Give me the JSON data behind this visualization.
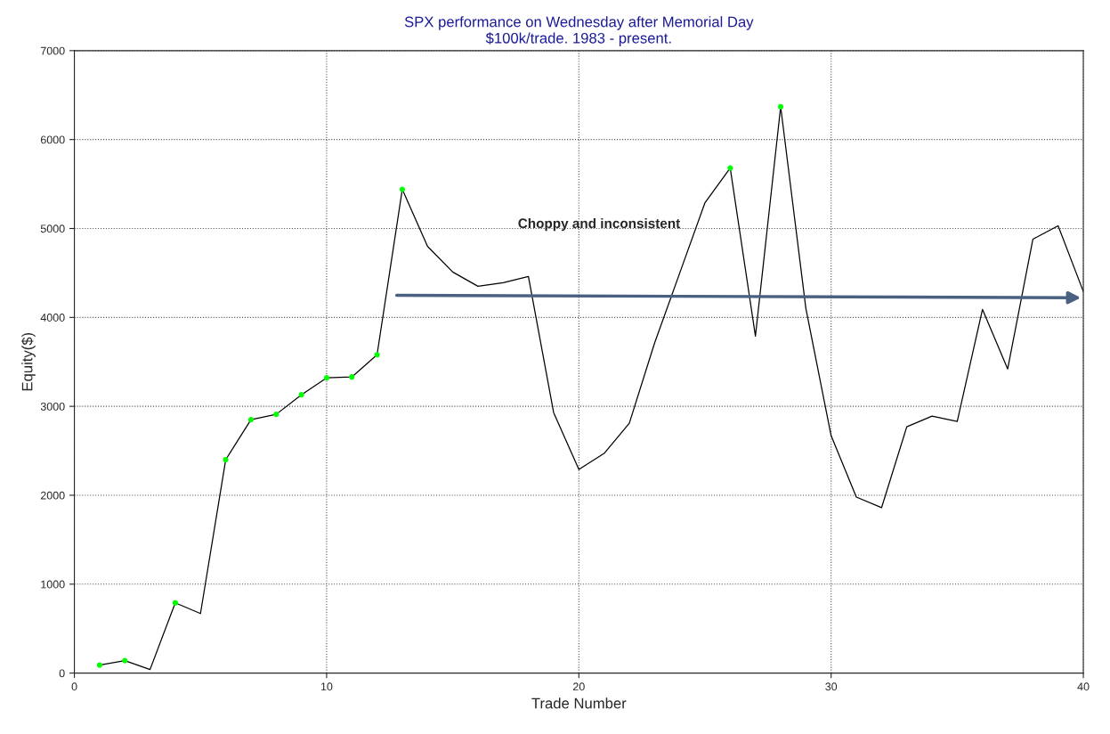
{
  "chart_data": {
    "type": "line",
    "title": "SPX performance on Wednesday after Memorial Day\n$100k/trade. 1983 - present.",
    "xlabel": "Trade Number",
    "ylabel": "Equity($)",
    "series": [
      {
        "color": "#000000",
        "x": [
          1,
          2,
          3,
          4,
          5,
          6,
          7,
          8,
          9,
          10,
          11,
          12,
          13,
          14,
          15,
          16,
          17,
          18,
          19,
          20,
          21,
          22,
          23,
          24,
          25,
          26,
          27,
          28,
          29,
          30,
          31,
          32,
          33,
          34,
          35,
          36,
          37,
          38,
          39,
          40
        ],
        "values": [
          90,
          140,
          40,
          790,
          670,
          2400,
          2850,
          2910,
          3130,
          3320,
          3330,
          3580,
          5440,
          4800,
          4510,
          4350,
          4390,
          4460,
          2930,
          2290,
          2470,
          2810,
          3710,
          4500,
          5290,
          5680,
          3790,
          6370,
          4100,
          2670,
          1980,
          1860,
          2770,
          2890,
          2830,
          4090,
          3420,
          4880,
          5030,
          4290
        ]
      },
      {
        "type": "scatter",
        "color": "#00ff00",
        "marker": "circle",
        "x": [
          1,
          2,
          4,
          6,
          7,
          8,
          9,
          10,
          11,
          12,
          13,
          26,
          28
        ],
        "values": [
          90,
          140,
          790,
          2400,
          2850,
          2910,
          3130,
          3320,
          3330,
          3580,
          5440,
          5680,
          6370
        ]
      }
    ],
    "xlim": [
      0,
      40
    ],
    "xticks": [
      0,
      10,
      20,
      30,
      40
    ],
    "ylim": [
      0,
      7000
    ],
    "yticks": [
      0,
      1000,
      2000,
      3000,
      4000,
      5000,
      6000,
      7000
    ],
    "grid": true,
    "annotations": [
      "Choppy and inconsistent"
    ]
  }
}
